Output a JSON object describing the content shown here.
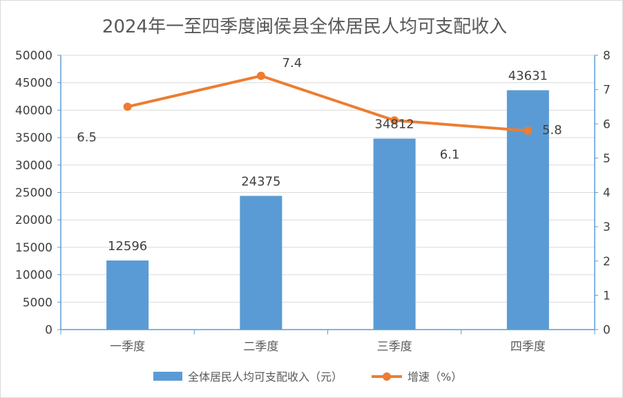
{
  "chart_data": {
    "type": "bar",
    "title": "2024年一至四季度闽侯县全体居民人均可支配收入",
    "categories": [
      "一季度",
      "二季度",
      "三季度",
      "四季度"
    ],
    "series": [
      {
        "name": "全体居民人均可支配收入（元）",
        "type": "bar",
        "axis": "left",
        "color": "#5B9BD5",
        "values": [
          12596,
          24375,
          34812,
          43631
        ],
        "data_labels": [
          "12596",
          "24375",
          "34812",
          "43631"
        ]
      },
      {
        "name": "增速（%）",
        "type": "line",
        "axis": "right",
        "color": "#ED7D31",
        "values": [
          6.5,
          7.4,
          6.1,
          5.8
        ],
        "data_labels": [
          "6.5",
          "7.4",
          "6.1",
          "5.8"
        ]
      }
    ],
    "y_left": {
      "ylim": [
        0,
        50000
      ],
      "ticks": [
        "0",
        "5000",
        "10000",
        "15000",
        "20000",
        "25000",
        "30000",
        "35000",
        "40000",
        "45000",
        "50000"
      ]
    },
    "y_right": {
      "ylim": [
        0,
        8
      ],
      "ticks": [
        "0",
        "1",
        "2",
        "3",
        "4",
        "5",
        "6",
        "7",
        "8"
      ]
    },
    "grid": true,
    "legend_position": "bottom"
  }
}
